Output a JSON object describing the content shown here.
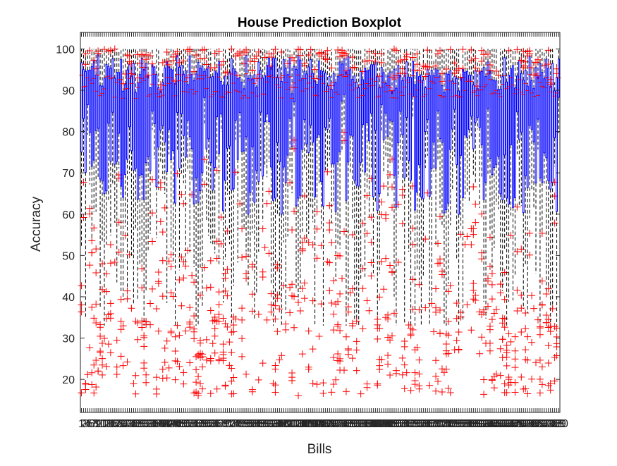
{
  "chart_data": {
    "type": "boxplot",
    "title": "House Prediction Boxplot",
    "xlabel": "Bills",
    "ylabel": "Accuracy",
    "ylim": [
      12,
      104
    ],
    "yticks": [
      20,
      30,
      40,
      50,
      60,
      70,
      80,
      90,
      100
    ],
    "grid": false,
    "legend": "none",
    "n_categories": 230,
    "colors": {
      "box": "#0000ff",
      "whisker": "#000000",
      "outlier": "#ff0000",
      "axis": "#262626"
    },
    "summary": {
      "median_range": [
        88,
        94
      ],
      "q1_range": [
        60,
        90
      ],
      "q3_range": [
        90,
        100
      ],
      "whisker_low_range": [
        33,
        85
      ],
      "max": 100,
      "min_outlier": 16
    },
    "note_on_x_tick_labels": "230 tick labels rendered overlapping and illegible"
  }
}
